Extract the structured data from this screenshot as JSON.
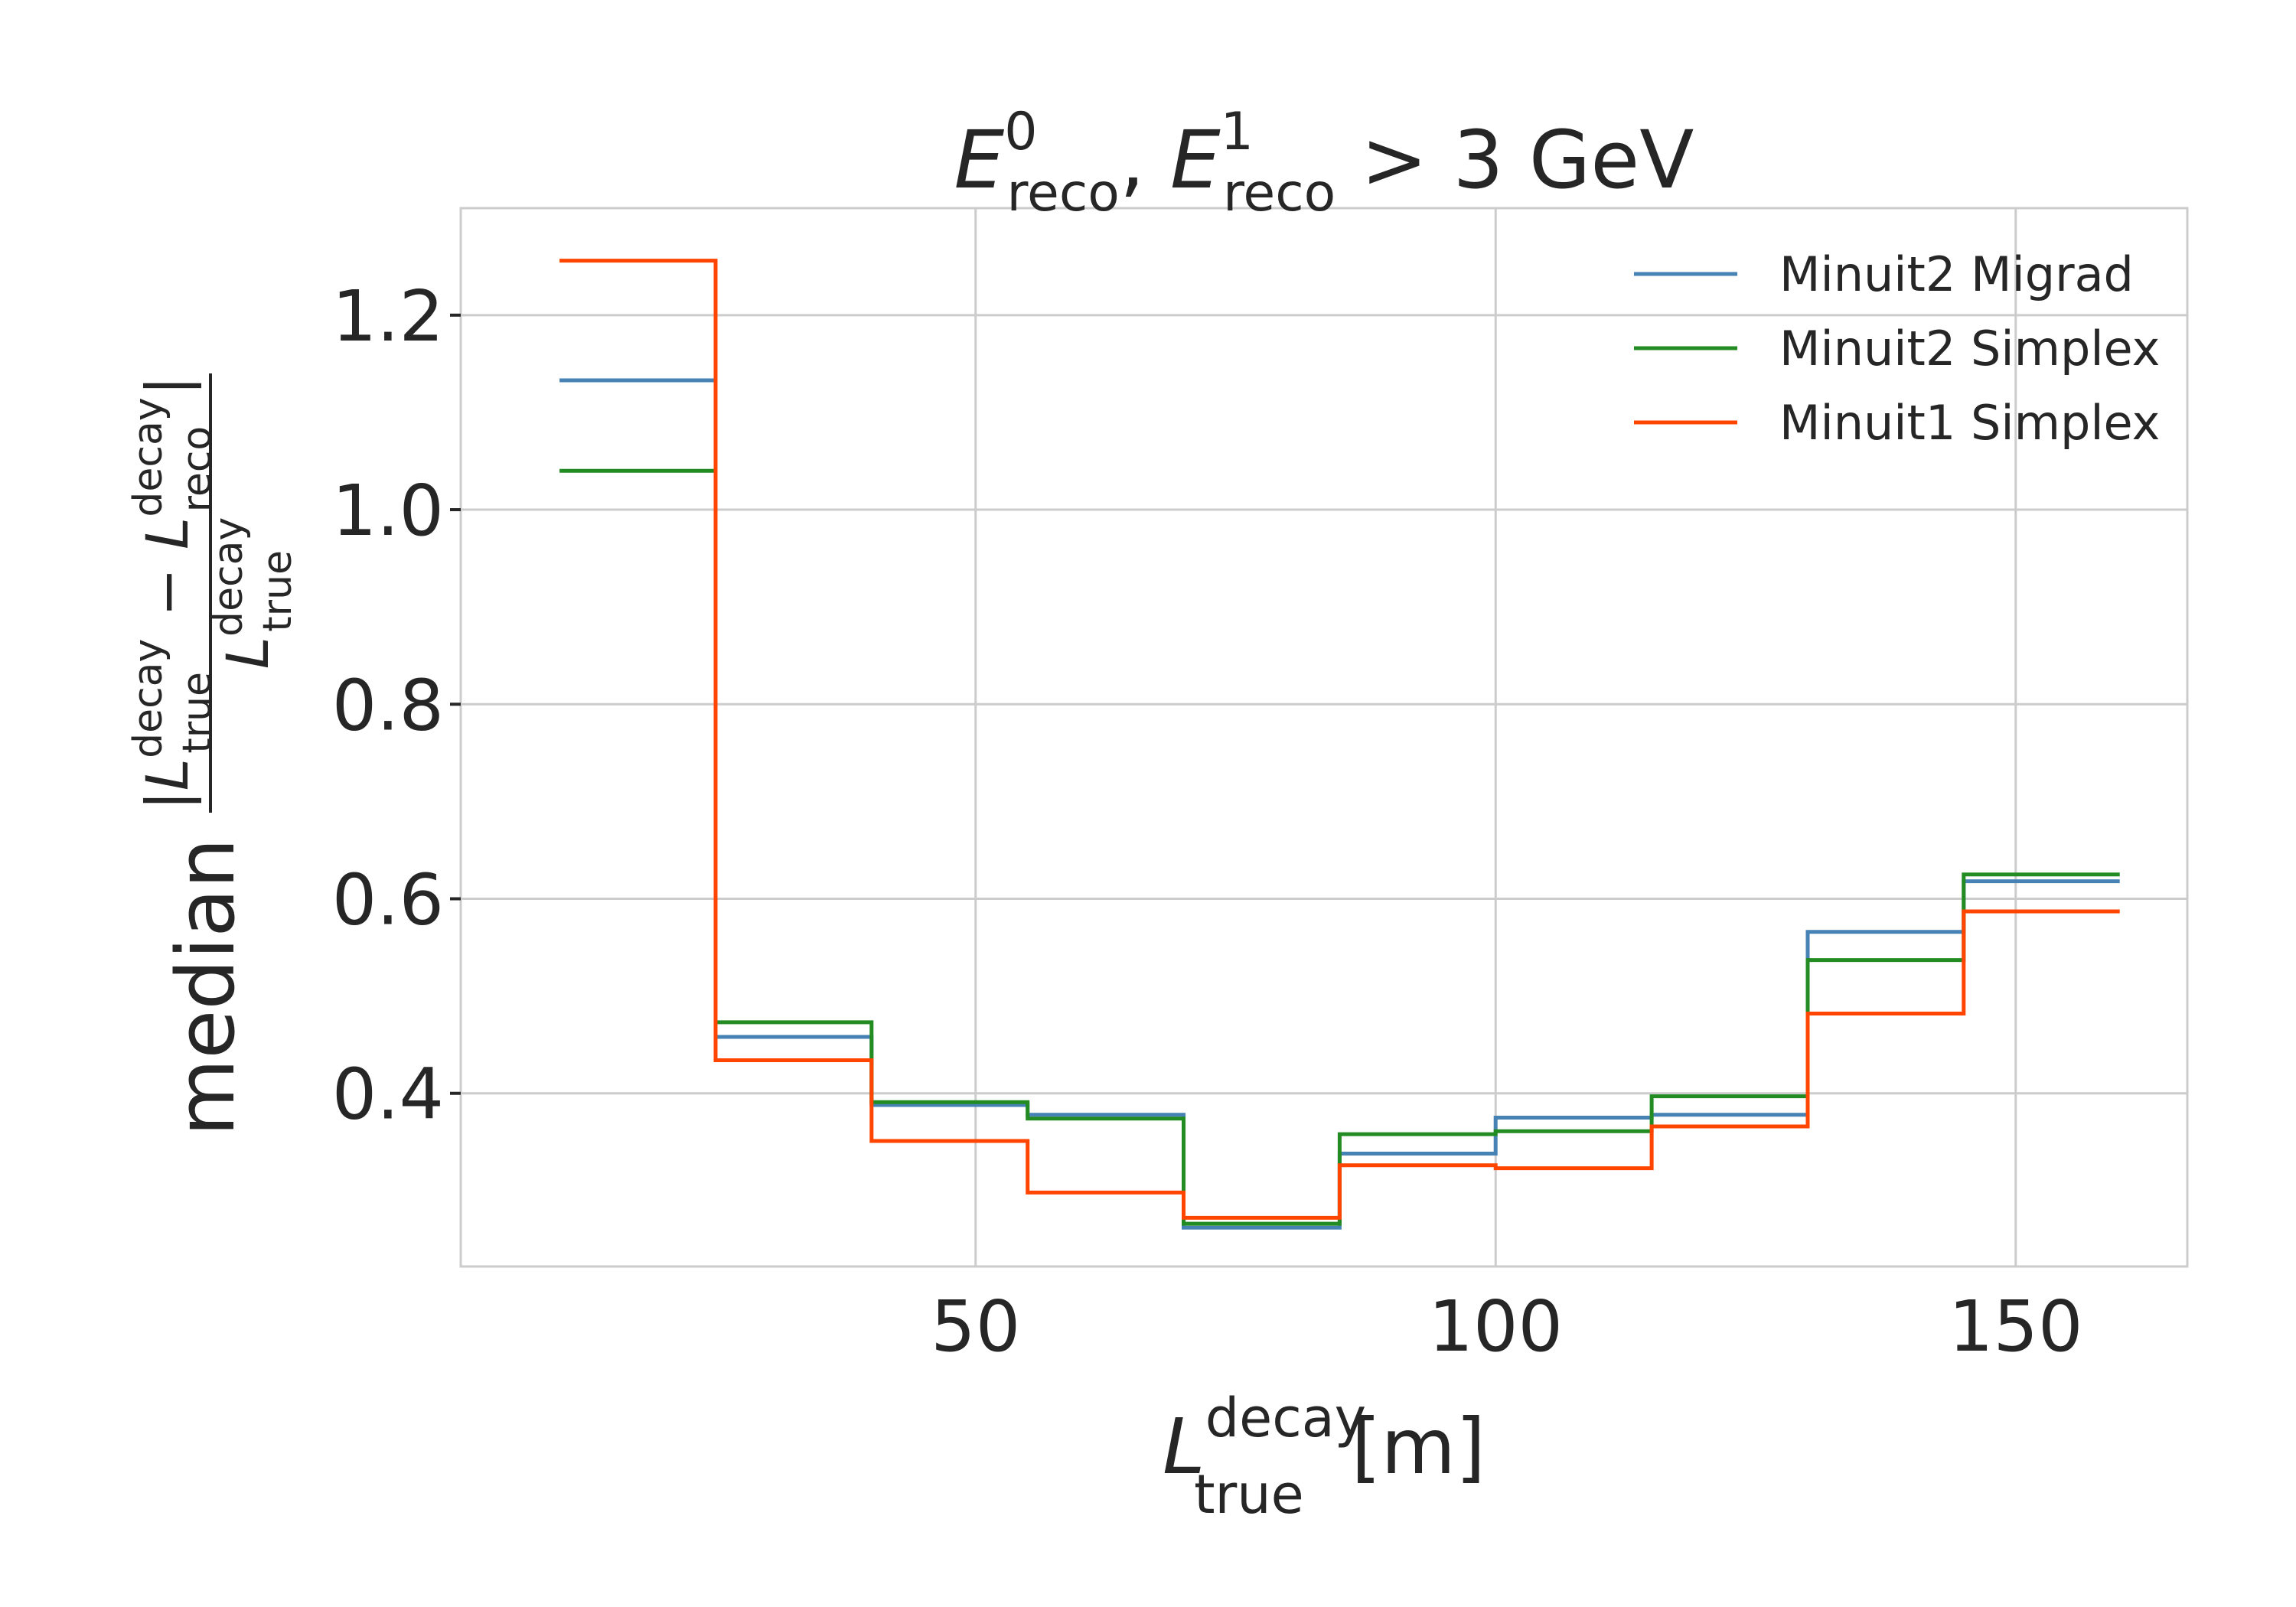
{
  "chart_data": {
    "type": "line",
    "step": "post",
    "title": {
      "base1": "E",
      "sup1": "0",
      "sub1": "reco",
      "sep": ", ",
      "base2": "E",
      "sup2": "1",
      "sub2": "reco",
      "rest": " > 3 GeV"
    },
    "xlabel": {
      "base": "L",
      "sup": "decay",
      "sub": "true",
      "unit": " [m]"
    },
    "ylabel": {
      "prefix": "median",
      "num_open": "|",
      "num_base1": "L",
      "num_sup1": "decay",
      "num_sub1": "true",
      "num_minus": " − ",
      "num_base2": "L",
      "num_sup2": "decay",
      "num_sub2": "reco",
      "num_close": "|",
      "den_base": "L",
      "den_sup": "decay",
      "den_sub": "true"
    },
    "xlim": [
      0.5,
      166.5
    ],
    "ylim": [
      0.222,
      1.31
    ],
    "xticks": [
      50,
      100,
      150
    ],
    "xtick_labels": [
      "50",
      "100",
      "150"
    ],
    "yticks": [
      0.4,
      0.6,
      0.8,
      1.0,
      1.2
    ],
    "ytick_labels": [
      "0.4",
      "0.6",
      "0.8",
      "1.0",
      "1.2"
    ],
    "grid": true,
    "legend_position": "top-right",
    "bin_edges": [
      10,
      25,
      40,
      55,
      70,
      85,
      100,
      115,
      130,
      145,
      160
    ],
    "series": [
      {
        "name": "Minuit2 Migrad",
        "color": "#4682b4",
        "values": [
          1.133,
          0.458,
          0.388,
          0.378,
          0.262,
          0.338,
          0.375,
          0.378,
          0.566,
          0.618
        ]
      },
      {
        "name": "Minuit2 Simplex",
        "color": "#228b22",
        "values": [
          1.04,
          0.473,
          0.391,
          0.374,
          0.266,
          0.358,
          0.361,
          0.397,
          0.537,
          0.625
        ]
      },
      {
        "name": "Minuit1 Simplex",
        "color": "#ff4500",
        "values": [
          1.256,
          0.434,
          0.351,
          0.298,
          0.272,
          0.326,
          0.323,
          0.366,
          0.482,
          0.587
        ]
      }
    ]
  }
}
